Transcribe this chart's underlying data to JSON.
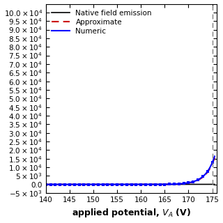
{
  "title": "",
  "xlabel": "applied potential, $V_A$ (V)",
  "ylabel": "",
  "xlim": [
    140,
    176
  ],
  "ylim": [
    -5000,
    105000
  ],
  "vline_x": 175,
  "legend_labels": [
    "Numeric",
    "Approximate",
    "Native field emission"
  ],
  "line_colors": [
    "blue",
    "#cc0000",
    "black"
  ],
  "background_color": "#ffffff",
  "xticks": [
    140,
    145,
    150,
    155,
    160,
    165,
    170,
    175
  ],
  "ytick_vals": [
    -5000,
    0,
    5000,
    10000,
    15000,
    20000,
    25000,
    30000,
    35000,
    40000,
    45000,
    50000,
    55000,
    60000,
    65000,
    70000,
    75000,
    80000,
    85000,
    90000,
    95000,
    100000
  ],
  "ytick_labels": [
    "-5x10^3",
    "0.0",
    "5x10^3",
    "1.0x10^4",
    "1.5x10^4",
    "2.0x10^4",
    "2.5x10^4",
    "3.0x10^4",
    "3.5x10^4",
    "4.0x10^4",
    "4.5x10^4",
    "5.0x10^4",
    "5.5x10^4",
    "6.0x10^4",
    "6.5x10^4",
    "7.0x10^4",
    "7.5x10^4",
    "8.0x10^4",
    "8.5x10^4",
    "9.0x10^4",
    "9.5x10^4",
    "10x10^4"
  ],
  "approx_A": 0.00015,
  "approx_b": 0.52,
  "native_A": 10,
  "native_b": 0.06,
  "numeric_extra_thresh": 167,
  "numeric_extra_A": 30,
  "numeric_extra_b": 0.38
}
